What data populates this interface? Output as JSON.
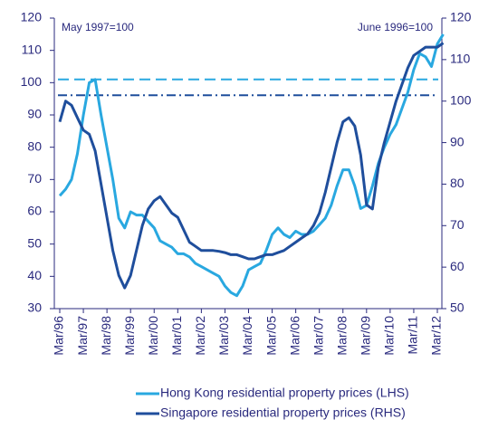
{
  "chart_data": {
    "type": "line",
    "annotations": [
      "May 1997=100",
      "June 1996=100"
    ],
    "categories": [
      "Mar/96",
      null,
      null,
      null,
      "Mar/97",
      null,
      null,
      null,
      "Mar/98",
      null,
      null,
      null,
      "Mar/99",
      null,
      null,
      null,
      "Mar/00",
      null,
      null,
      null,
      "Mar/01",
      null,
      null,
      null,
      "Mar/02",
      null,
      null,
      null,
      "Mar/03",
      null,
      null,
      null,
      "Mar/04",
      null,
      null,
      null,
      "Mar/05",
      null,
      null,
      null,
      "Mar/06",
      null,
      null,
      null,
      "Mar/07",
      null,
      null,
      null,
      "Mar/08",
      null,
      null,
      null,
      "Mar/09",
      null,
      null,
      null,
      "Mar/10",
      null,
      null,
      null,
      "Mar/11",
      null,
      null,
      null,
      "Mar/12",
      null
    ],
    "series": [
      {
        "name": "Hong Kong residential property prices (LHS)",
        "color": "#29a8e0",
        "axis": "y",
        "values": [
          65,
          67,
          70,
          78,
          90,
          100,
          101,
          90,
          80,
          70,
          58,
          55,
          60,
          59,
          59,
          57,
          55,
          51,
          50,
          49,
          47,
          47,
          46,
          44,
          43,
          42,
          41,
          40,
          37,
          35,
          34,
          37,
          42,
          43,
          44,
          48,
          53,
          55,
          53,
          52,
          54,
          53,
          53,
          54,
          56,
          58,
          62,
          68,
          73,
          73,
          68,
          61,
          62,
          68,
          75,
          80,
          84,
          87,
          92,
          97,
          104,
          109,
          108,
          105,
          112,
          115
        ]
      },
      {
        "name": "Singapore residential property prices (RHS)",
        "color": "#1f4e9c",
        "axis": "y2",
        "values": [
          95,
          100,
          99,
          96,
          93,
          92,
          88,
          80,
          72,
          64,
          58,
          55,
          58,
          64,
          70,
          74,
          76,
          77,
          75,
          73,
          72,
          69,
          66,
          65,
          64,
          64,
          64,
          63.8,
          63.5,
          63,
          63,
          62.5,
          62,
          62,
          62.5,
          63,
          63,
          63.5,
          64,
          65,
          66,
          67,
          68,
          70,
          73,
          78,
          84,
          90,
          95,
          96,
          94,
          87,
          75,
          74,
          84,
          90,
          95,
          100,
          104,
          108,
          111,
          112,
          113,
          113,
          113,
          114
        ]
      }
    ],
    "reference_lines": [
      {
        "value": 101,
        "axis": "y",
        "color": "#29a8e0",
        "style": "dashed"
      },
      {
        "value": 101.4,
        "axis": "y2",
        "color": "#1f4e9c",
        "style": "dashdot"
      }
    ],
    "ylim": [
      30,
      120
    ],
    "yticks": [
      30,
      40,
      50,
      60,
      70,
      80,
      90,
      100,
      110,
      120
    ],
    "y2lim": [
      50,
      120
    ],
    "y2ticks": [
      50,
      60,
      70,
      80,
      90,
      100,
      110,
      120
    ],
    "legend": "bottom"
  }
}
